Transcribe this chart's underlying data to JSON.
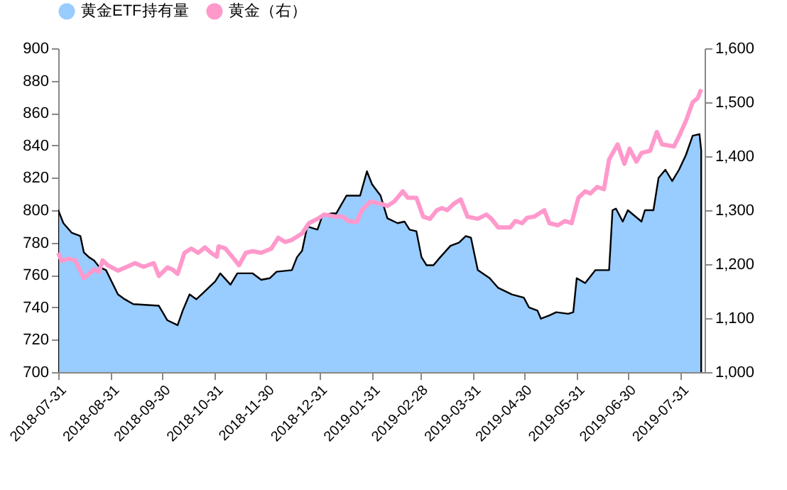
{
  "chart_data": {
    "type": "area",
    "legend": "top",
    "grid": false,
    "xlim": [
      "2018-07-31",
      "2019-08-14"
    ],
    "xticks": [
      "2018-07-31",
      "2018-08-31",
      "2018-09-30",
      "2018-10-31",
      "2018-11-30",
      "2018-12-31",
      "2019-01-31",
      "2019-02-28",
      "2019-03-31",
      "2019-04-30",
      "2019-05-31",
      "2019-06-30",
      "2019-07-31"
    ],
    "ylim": [
      700,
      900
    ],
    "yticks": [
      700,
      720,
      740,
      760,
      780,
      800,
      820,
      840,
      860,
      880,
      900
    ],
    "y2lim": [
      1000,
      1600
    ],
    "y2ticks": [
      {
        "value": 1000,
        "label": "1,000"
      },
      {
        "value": 1100,
        "label": "1,100"
      },
      {
        "value": 1200,
        "label": "1,200"
      },
      {
        "value": 1300,
        "label": "1,300"
      },
      {
        "value": 1400,
        "label": "1,400"
      },
      {
        "value": 1500,
        "label": "1,500"
      },
      {
        "value": 1600,
        "label": "1,600"
      }
    ],
    "series": [
      {
        "name": "黄金ETF持有量",
        "color": "#99ccff",
        "x": [
          "2018-07-31",
          "2018-08-03",
          "2018-08-08",
          "2018-08-13",
          "2018-08-15",
          "2018-08-18",
          "2018-08-21",
          "2018-08-24",
          "2018-08-28",
          "2018-09-04",
          "2018-09-08",
          "2018-09-13",
          "2018-09-28",
          "2018-10-03",
          "2018-10-09",
          "2018-10-12",
          "2018-10-16",
          "2018-10-20",
          "2018-10-24",
          "2018-10-31",
          "2018-11-03",
          "2018-11-09",
          "2018-11-13",
          "2018-11-22",
          "2018-11-27",
          "2018-12-02",
          "2018-12-06",
          "2018-12-15",
          "2018-12-18",
          "2018-12-21",
          "2018-12-24",
          "2018-12-30",
          "2019-01-02",
          "2019-01-07",
          "2019-01-10",
          "2019-01-16",
          "2019-01-24",
          "2019-01-28",
          "2019-01-31",
          "2019-02-05",
          "2019-02-09",
          "2019-02-15",
          "2019-02-19",
          "2019-02-22",
          "2019-02-26",
          "2019-03-01",
          "2019-03-04",
          "2019-03-08",
          "2019-03-12",
          "2019-03-18",
          "2019-03-23",
          "2019-03-27",
          "2019-03-30",
          "2019-04-03",
          "2019-04-10",
          "2019-04-15",
          "2019-04-23",
          "2019-04-30",
          "2019-05-03",
          "2019-05-08",
          "2019-05-10",
          "2019-05-15",
          "2019-05-19",
          "2019-05-26",
          "2019-05-29",
          "2019-05-31",
          "2019-06-05",
          "2019-06-11",
          "2019-06-19",
          "2019-06-21",
          "2019-06-23",
          "2019-06-27",
          "2019-06-30",
          "2019-07-08",
          "2019-07-10",
          "2019-07-15",
          "2019-07-18",
          "2019-07-22",
          "2019-07-26",
          "2019-07-30",
          "2019-08-03",
          "2019-08-07",
          "2019-08-11",
          "2019-08-12"
        ],
        "values": [
          800,
          792,
          786,
          784,
          774,
          771,
          769,
          765,
          763,
          748,
          745,
          742,
          741,
          732,
          729,
          738,
          748,
          745,
          749,
          756,
          761,
          754,
          761,
          761,
          757,
          758,
          762,
          763,
          771,
          775,
          790,
          788,
          797,
          798,
          798,
          809,
          809,
          824,
          816,
          809,
          795,
          792,
          793,
          788,
          787,
          771,
          766,
          766,
          771,
          778,
          780,
          784,
          783,
          763,
          758,
          752,
          748,
          746,
          740,
          738,
          733,
          735,
          737,
          736,
          737,
          758,
          755,
          763,
          763,
          800,
          801,
          793,
          800,
          793,
          800,
          800,
          820,
          825,
          818,
          825,
          834,
          846,
          847,
          837
        ]
      },
      {
        "name": "黄金（右）",
        "type": "line",
        "axis": "y2",
        "color": "#ff99cc",
        "x": [
          "2018-07-31",
          "2018-08-02",
          "2018-08-06",
          "2018-08-10",
          "2018-08-15",
          "2018-08-21",
          "2018-08-24",
          "2018-08-26",
          "2018-08-29",
          "2018-09-04",
          "2018-09-10",
          "2018-09-14",
          "2018-09-19",
          "2018-09-25",
          "2018-09-28",
          "2018-10-03",
          "2018-10-06",
          "2018-10-09",
          "2018-10-13",
          "2018-10-17",
          "2018-10-21",
          "2018-10-25",
          "2018-10-29",
          "2018-11-01",
          "2018-11-02",
          "2018-11-06",
          "2018-11-11",
          "2018-11-14",
          "2018-11-18",
          "2018-11-22",
          "2018-11-27",
          "2018-12-03",
          "2018-12-07",
          "2018-12-11",
          "2018-12-15",
          "2018-12-21",
          "2018-12-25",
          "2018-12-30",
          "2019-01-03",
          "2019-01-10",
          "2019-01-14",
          "2019-01-17",
          "2019-01-22",
          "2019-01-25",
          "2019-01-30",
          "2019-02-05",
          "2019-02-09",
          "2019-02-13",
          "2019-02-18",
          "2019-02-21",
          "2019-02-26",
          "2019-03-02",
          "2019-03-06",
          "2019-03-10",
          "2019-03-13",
          "2019-03-16",
          "2019-03-20",
          "2019-03-24",
          "2019-03-28",
          "2019-04-03",
          "2019-04-08",
          "2019-04-11",
          "2019-04-15",
          "2019-04-22",
          "2019-04-25",
          "2019-04-29",
          "2019-05-02",
          "2019-05-06",
          "2019-05-12",
          "2019-05-15",
          "2019-05-20",
          "2019-05-24",
          "2019-05-28",
          "2019-06-01",
          "2019-06-05",
          "2019-06-08",
          "2019-06-12",
          "2019-06-16",
          "2019-06-19",
          "2019-06-24",
          "2019-06-28",
          "2019-07-01",
          "2019-07-05",
          "2019-07-08",
          "2019-07-13",
          "2019-07-17",
          "2019-07-20",
          "2019-07-27",
          "2019-07-30",
          "2019-08-03",
          "2019-08-07",
          "2019-08-10",
          "2019-08-12"
        ],
        "values": [
          1221,
          1206,
          1210,
          1207,
          1174,
          1190,
          1186,
          1207,
          1198,
          1188,
          1196,
          1202,
          1195,
          1202,
          1178,
          1194,
          1190,
          1182,
          1221,
          1229,
          1221,
          1231,
          1220,
          1214,
          1233,
          1229,
          1210,
          1198,
          1221,
          1224,
          1221,
          1229,
          1249,
          1241,
          1245,
          1257,
          1276,
          1284,
          1292,
          1288,
          1288,
          1280,
          1278,
          1300,
          1316,
          1312,
          1308,
          1316,
          1335,
          1323,
          1323,
          1288,
          1284,
          1300,
          1304,
          1300,
          1312,
          1320,
          1288,
          1284,
          1292,
          1284,
          1268,
          1268,
          1280,
          1276,
          1286,
          1288,
          1300,
          1276,
          1272,
          1280,
          1276,
          1323,
          1335,
          1331,
          1343,
          1339,
          1394,
          1422,
          1386,
          1414,
          1390,
          1406,
          1410,
          1445,
          1422,
          1418,
          1437,
          1465,
          1500,
          1508,
          1524
        ]
      }
    ]
  }
}
